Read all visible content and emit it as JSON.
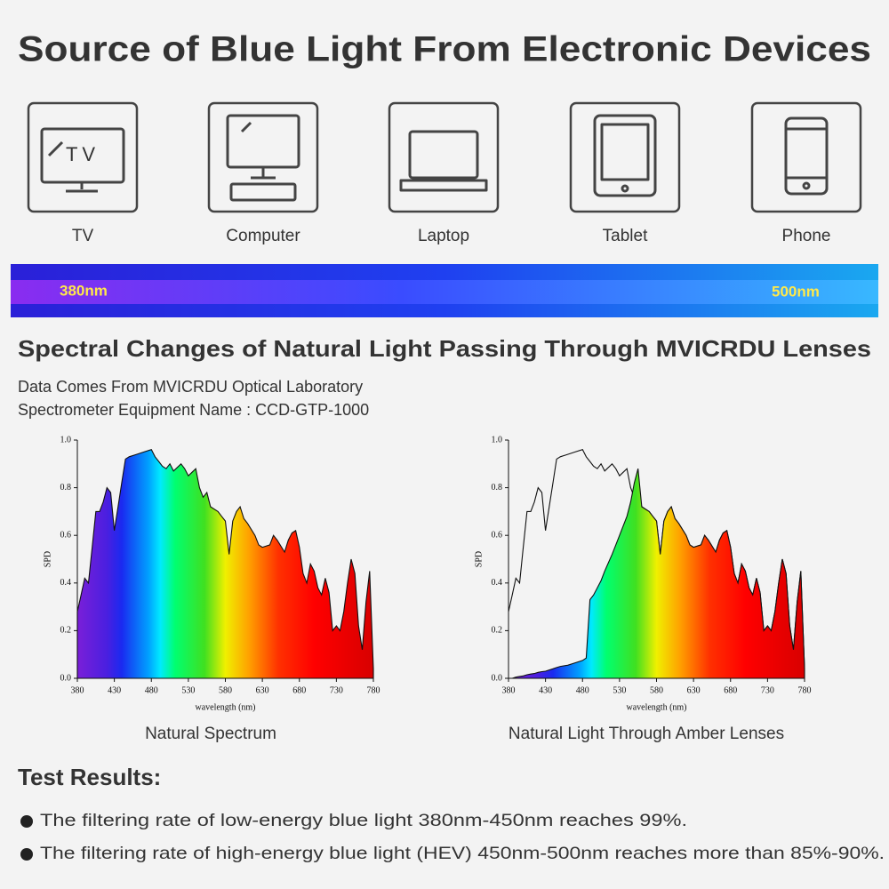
{
  "header": {
    "title": "Source of Blue Light From Electronic Devices"
  },
  "devices": [
    {
      "label": "TV",
      "icon_text": "TV"
    },
    {
      "label": "Computer"
    },
    {
      "label": "Laptop"
    },
    {
      "label": "Tablet"
    },
    {
      "label": "Phone"
    }
  ],
  "band": {
    "start_label": "380nm",
    "end_label": "500nm"
  },
  "section": {
    "title": "Spectral Changes of Natural Light Passing Through MVICRDU Lenses",
    "source": "Data Comes From MVICRDU Optical Laboratory",
    "equipment": "Spectrometer Equipment Name : CCD-GTP-1000"
  },
  "chart_data": [
    {
      "type": "area",
      "caption": "Natural Spectrum",
      "x_label": "wavelength (nm)",
      "y_label": "SPD",
      "xlim": [
        380,
        780
      ],
      "ylim": [
        0,
        1
      ],
      "xticks": [
        380,
        430,
        480,
        530,
        580,
        630,
        680,
        730,
        780
      ],
      "yticks": [
        {
          "value": 0,
          "label": "0.0"
        },
        {
          "value": 0.2,
          "label": "0.2"
        },
        {
          "value": 0.4,
          "label": "0.4"
        },
        {
          "value": 0.6,
          "label": "0.6"
        },
        {
          "value": 0.8,
          "label": "0.8"
        },
        {
          "value": 1,
          "label": "1.0"
        }
      ],
      "x": [
        380,
        385,
        390,
        395,
        400,
        405,
        410,
        415,
        420,
        425,
        430,
        435,
        440,
        445,
        450,
        460,
        470,
        480,
        485,
        490,
        495,
        500,
        505,
        510,
        520,
        525,
        530,
        540,
        545,
        550,
        555,
        560,
        570,
        575,
        580,
        585,
        590,
        595,
        600,
        605,
        610,
        620,
        625,
        630,
        640,
        645,
        650,
        660,
        665,
        670,
        675,
        680,
        685,
        690,
        695,
        700,
        705,
        710,
        715,
        720,
        725,
        730,
        735,
        740,
        745,
        750,
        755,
        760,
        765,
        770,
        775,
        780
      ],
      "series": [
        {
          "color": "#111111",
          "fill": true,
          "values": [
            0.28,
            0.35,
            0.42,
            0.4,
            0.55,
            0.7,
            0.7,
            0.74,
            0.8,
            0.78,
            0.62,
            0.72,
            0.82,
            0.92,
            0.93,
            0.94,
            0.95,
            0.96,
            0.93,
            0.91,
            0.89,
            0.88,
            0.9,
            0.87,
            0.9,
            0.88,
            0.85,
            0.88,
            0.8,
            0.76,
            0.78,
            0.72,
            0.7,
            0.68,
            0.66,
            0.52,
            0.66,
            0.7,
            0.72,
            0.67,
            0.65,
            0.6,
            0.56,
            0.55,
            0.56,
            0.6,
            0.58,
            0.53,
            0.58,
            0.61,
            0.62,
            0.55,
            0.44,
            0.4,
            0.48,
            0.45,
            0.38,
            0.35,
            0.42,
            0.36,
            0.2,
            0.22,
            0.2,
            0.28,
            0.4,
            0.5,
            0.44,
            0.22,
            0.12,
            0.32,
            0.45,
            0.04
          ]
        }
      ]
    },
    {
      "type": "area",
      "caption": "Natural Light Through Amber Lenses",
      "x_label": "wavelength (nm)",
      "y_label": "SPD",
      "xlim": [
        380,
        780
      ],
      "ylim": [
        0,
        1
      ],
      "xticks": [
        380,
        430,
        480,
        530,
        580,
        630,
        680,
        730,
        780
      ],
      "yticks": [
        {
          "value": 0,
          "label": "0.0"
        },
        {
          "value": 0.2,
          "label": "0.2"
        },
        {
          "value": 0.4,
          "label": "0.4"
        },
        {
          "value": 0.6,
          "label": "0.6"
        },
        {
          "value": 0.8,
          "label": "0.8"
        },
        {
          "value": 1,
          "label": "1.0"
        }
      ],
      "x": [
        380,
        385,
        390,
        395,
        400,
        405,
        410,
        415,
        420,
        425,
        430,
        435,
        440,
        445,
        450,
        460,
        470,
        480,
        485,
        490,
        495,
        500,
        505,
        510,
        520,
        525,
        530,
        540,
        545,
        550,
        555,
        560,
        570,
        575,
        580,
        585,
        590,
        595,
        600,
        605,
        610,
        620,
        625,
        630,
        640,
        645,
        650,
        660,
        665,
        670,
        675,
        680,
        685,
        690,
        695,
        700,
        705,
        710,
        715,
        720,
        725,
        730,
        735,
        740,
        745,
        750,
        755,
        760,
        765,
        770,
        775,
        780
      ],
      "series": [
        {
          "color": "#111111",
          "fill": false,
          "values": [
            0.28,
            0.35,
            0.42,
            0.4,
            0.55,
            0.7,
            0.7,
            0.74,
            0.8,
            0.78,
            0.62,
            0.72,
            0.82,
            0.92,
            0.93,
            0.94,
            0.95,
            0.96,
            0.93,
            0.91,
            0.89,
            0.88,
            0.9,
            0.87,
            0.9,
            0.88,
            0.85,
            0.88,
            0.8,
            0.76,
            0.78,
            0.72,
            0.7,
            0.68,
            0.66,
            0.52,
            0.66,
            0.7,
            0.72,
            0.67,
            0.65,
            0.6,
            0.56,
            0.55,
            0.56,
            0.6,
            0.58,
            0.53,
            0.58,
            0.61,
            0.62,
            0.55,
            0.44,
            0.4,
            0.48,
            0.45,
            0.38,
            0.35,
            0.42,
            0.36,
            0.2,
            0.22,
            0.2,
            0.28,
            0.4,
            0.5,
            0.44,
            0.22,
            0.12,
            0.32,
            0.45,
            0.04
          ]
        },
        {
          "color": "#111111",
          "fill": true,
          "values": [
            0,
            0,
            0.005,
            0.008,
            0.01,
            0.015,
            0.018,
            0.02,
            0.025,
            0.028,
            0.03,
            0.035,
            0.04,
            0.045,
            0.05,
            0.055,
            0.065,
            0.075,
            0.085,
            0.33,
            0.35,
            0.38,
            0.41,
            0.45,
            0.52,
            0.56,
            0.6,
            0.68,
            0.74,
            0.82,
            0.88,
            0.72,
            0.7,
            0.68,
            0.66,
            0.52,
            0.66,
            0.7,
            0.72,
            0.67,
            0.65,
            0.6,
            0.56,
            0.55,
            0.56,
            0.6,
            0.58,
            0.53,
            0.58,
            0.61,
            0.62,
            0.55,
            0.44,
            0.4,
            0.48,
            0.45,
            0.38,
            0.35,
            0.42,
            0.36,
            0.2,
            0.22,
            0.2,
            0.28,
            0.4,
            0.5,
            0.44,
            0.22,
            0.12,
            0.32,
            0.45,
            0.04
          ]
        }
      ]
    }
  ],
  "results": {
    "title": "Test Results:",
    "items": [
      "The filtering rate of low-energy blue light 380nm-450nm reaches 99%.",
      "The filtering rate of high-energy blue light (HEV) 450nm-500nm reaches more than 85%-90%."
    ]
  }
}
